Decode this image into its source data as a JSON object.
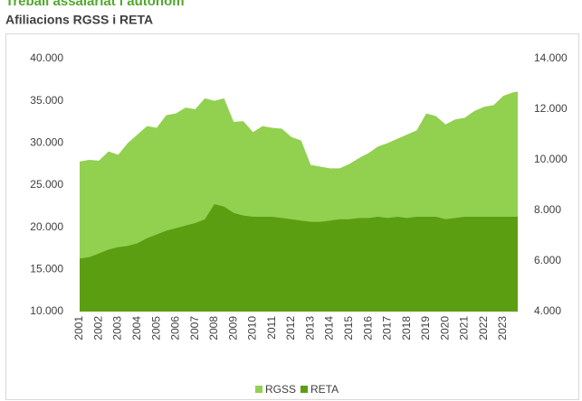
{
  "header": {
    "title": "Treball assalariat i autònom"
  },
  "chart_data": {
    "type": "area",
    "title": "Afiliacions RGSS i RETA",
    "x": [
      2001,
      2001.5,
      2002,
      2002.5,
      2003,
      2003.5,
      2004,
      2004.5,
      2005,
      2005.5,
      2006,
      2006.5,
      2007,
      2007.5,
      2008,
      2008.5,
      2009,
      2009.5,
      2010,
      2010.5,
      2011,
      2011.5,
      2012,
      2012.5,
      2013,
      2013.5,
      2014,
      2014.5,
      2015,
      2015.5,
      2016,
      2016.5,
      2017,
      2017.5,
      2018,
      2018.5,
      2019,
      2019.5,
      2020,
      2020.5,
      2021,
      2021.5,
      2022,
      2022.5,
      2023,
      2023.5,
      2023.75
    ],
    "series": [
      {
        "name": "RGSS",
        "color": "#92d050",
        "axis": "y",
        "values": [
          27800,
          28000,
          27900,
          29000,
          28600,
          30000,
          31000,
          32000,
          31800,
          33300,
          33500,
          34200,
          34000,
          35300,
          35000,
          35300,
          32500,
          32600,
          31300,
          32000,
          31800,
          31700,
          30700,
          30300,
          27400,
          27200,
          27000,
          27000,
          27500,
          28200,
          28800,
          29600,
          30000,
          30500,
          31000,
          31500,
          33500,
          33200,
          32200,
          32800,
          33000,
          33800,
          34300,
          34500,
          35600,
          36000,
          36100
        ]
      },
      {
        "name": "RETA",
        "color": "#5c9e12",
        "axis": "y2",
        "values": [
          6100,
          6150,
          6300,
          6450,
          6550,
          6600,
          6700,
          6900,
          7050,
          7200,
          7300,
          7400,
          7500,
          7650,
          8250,
          8150,
          7900,
          7800,
          7750,
          7750,
          7750,
          7700,
          7650,
          7600,
          7550,
          7550,
          7600,
          7650,
          7650,
          7700,
          7700,
          7750,
          7700,
          7750,
          7700,
          7750,
          7750,
          7750,
          7650,
          7700,
          7750,
          7750,
          7750,
          7750,
          7750,
          7750,
          7750
        ]
      }
    ],
    "xticks": [
      2001,
      2002,
      2003,
      2004,
      2005,
      2006,
      2007,
      2008,
      2009,
      2010,
      2011,
      2012,
      2013,
      2014,
      2015,
      2016,
      2017,
      2018,
      2019,
      2020,
      2021,
      2022,
      2023
    ],
    "ylim": [
      10000,
      40000
    ],
    "yticks": [
      {
        "value": 10000,
        "label": "10.000"
      },
      {
        "value": 15000,
        "label": "15.000"
      },
      {
        "value": 20000,
        "label": "20.000"
      },
      {
        "value": 25000,
        "label": "25.000"
      },
      {
        "value": 30000,
        "label": "30.000"
      },
      {
        "value": 35000,
        "label": "35.000"
      },
      {
        "value": 40000,
        "label": "40.000"
      }
    ],
    "y2lim": [
      4000,
      14000
    ],
    "y2ticks": [
      {
        "value": 4000,
        "label": "4.000"
      },
      {
        "value": 6000,
        "label": "6.000"
      },
      {
        "value": 8000,
        "label": "8.000"
      },
      {
        "value": 10000,
        "label": "10.000"
      },
      {
        "value": 12000,
        "label": "12.000"
      },
      {
        "value": 14000,
        "label": "14.000"
      }
    ],
    "legend": "bottom"
  }
}
